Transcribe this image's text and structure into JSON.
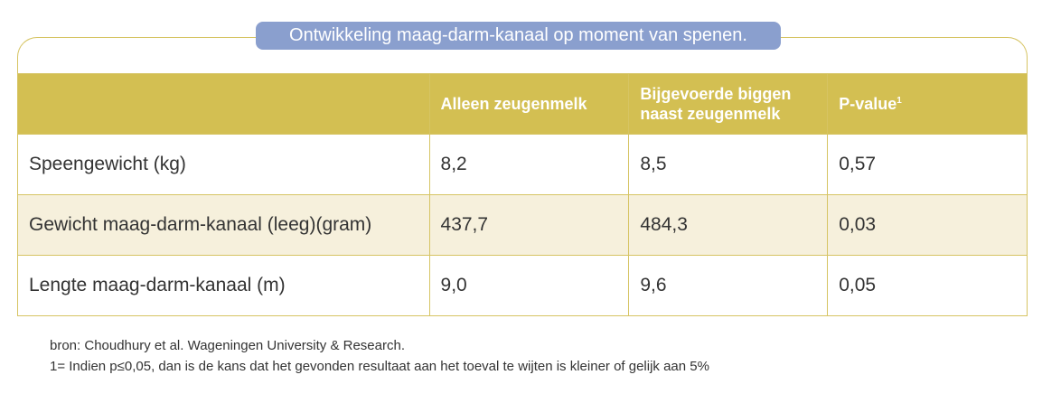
{
  "title": "Ontwikkeling maag-darm-kanaal op moment van spenen.",
  "table": {
    "headers": [
      "",
      "Alleen zeugenmelk",
      "Bijgevoerde biggen naast zeugenmelk",
      "P-value"
    ],
    "header_sup": "1",
    "rows": [
      [
        "Speengewicht (kg)",
        "8,2",
        "8,5",
        "0,57"
      ],
      [
        "Gewicht maag-darm-kanaal (leeg)(gram)",
        "437,7",
        "484,3",
        "0,03"
      ],
      [
        "Lengte maag-darm-kanaal (m)",
        "9,0",
        "9,6",
        "0,05"
      ]
    ]
  },
  "footnotes": {
    "source": "bron: Choudhury et al. Wageningen University & Research.",
    "note": "1= Indien p≤0,05, dan is de kans dat het gevonden resultaat aan het toeval te wijten is kleiner of gelijk aan 5%"
  },
  "colors": {
    "header_bg": "#d3bf52",
    "border": "#d6c463",
    "alt_row_bg": "#f6f0dc",
    "title_bg": "#8a9fce"
  }
}
